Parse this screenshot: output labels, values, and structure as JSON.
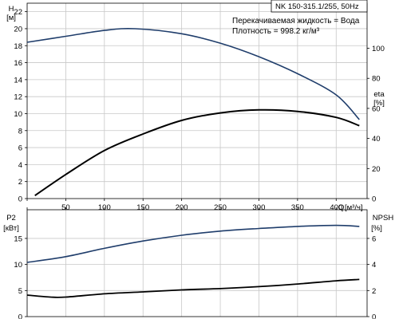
{
  "chart_data": [
    {
      "type": "line",
      "title": "NK 150-315.1/255, 50Hz",
      "annotations": [
        "Перекачиваемая жидкость = Вода",
        "Плотность = 998.2 кг/м³"
      ],
      "y_left": {
        "label": "H",
        "unit": "[м]",
        "lim": [
          0,
          23
        ],
        "ticks": [
          0,
          2,
          4,
          6,
          8,
          10,
          12,
          14,
          16,
          18,
          20,
          22
        ]
      },
      "y_right": {
        "label": "eta",
        "unit": "[%]",
        "lim": [
          0,
          130
        ],
        "ticks": [
          0,
          20,
          40,
          60,
          80,
          100
        ]
      },
      "x": {
        "label": "Q",
        "unit": "[м³/ч]",
        "lim": [
          0,
          440
        ],
        "ticks": [
          0,
          50,
          100,
          150,
          200,
          250,
          300,
          350,
          400
        ]
      },
      "grid": true,
      "series": [
        {
          "axis": "left",
          "color": "#1f3d6b",
          "x": [
            0,
            50,
            100,
            140,
            200,
            250,
            300,
            350,
            400,
            430
          ],
          "y": [
            18.4,
            19.1,
            19.8,
            20.0,
            19.4,
            18.3,
            16.7,
            14.7,
            12.2,
            9.3
          ]
        },
        {
          "axis": "right",
          "color": "#000000",
          "x": [
            10,
            50,
            100,
            150,
            200,
            250,
            300,
            350,
            400,
            430
          ],
          "y": [
            2,
            16,
            32,
            43,
            52,
            57,
            59,
            58,
            54,
            48.5
          ]
        }
      ]
    },
    {
      "type": "line",
      "y_left": {
        "label": "P2",
        "unit": "[кВт]",
        "lim": [
          0,
          20.5
        ],
        "ticks": [
          0,
          5,
          10,
          15
        ]
      },
      "y_right": {
        "label": "NPSH",
        "unit": "[%]",
        "lim": [
          0,
          8.2
        ],
        "ticks": [
          0,
          2,
          4,
          6
        ]
      },
      "x": {
        "lim": [
          0,
          440
        ]
      },
      "grid": true,
      "series": [
        {
          "axis": "left",
          "color": "#1f3d6b",
          "x": [
            0,
            50,
            100,
            150,
            200,
            250,
            300,
            350,
            400,
            430
          ],
          "y": [
            10.4,
            11.5,
            13.1,
            14.5,
            15.6,
            16.4,
            16.9,
            17.3,
            17.5,
            17.3
          ]
        },
        {
          "axis": "right",
          "color": "#000000",
          "x": [
            0,
            30,
            50,
            100,
            150,
            200,
            250,
            300,
            350,
            400,
            430
          ],
          "y": [
            1.65,
            1.5,
            1.5,
            1.75,
            1.9,
            2.05,
            2.15,
            2.3,
            2.5,
            2.75,
            2.85
          ]
        }
      ]
    }
  ]
}
